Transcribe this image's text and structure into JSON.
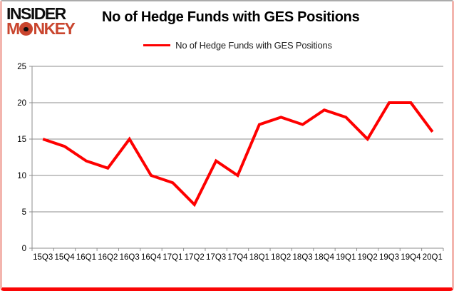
{
  "logo": {
    "line1": "INSIDER",
    "line2": "MONKEY",
    "accent_color": "#c9452e"
  },
  "header": {
    "title": "No of Hedge Funds with GES Positions"
  },
  "legend": {
    "label": "No of Hedge Funds with GES Positions",
    "swatch_color": "#fe0000"
  },
  "chart_data": {
    "type": "line",
    "title": "No of Hedge Funds with GES Positions",
    "categories": [
      "15Q3",
      "15Q4",
      "16Q1",
      "16Q2",
      "16Q3",
      "16Q4",
      "17Q1",
      "17Q2",
      "17Q3",
      "17Q4",
      "18Q1",
      "18Q2",
      "18Q3",
      "18Q4",
      "19Q1",
      "19Q2",
      "19Q3",
      "19Q4",
      "20Q1"
    ],
    "series": [
      {
        "name": "No of Hedge Funds with GES Positions",
        "color": "#fe0000",
        "values": [
          15,
          14,
          12,
          11,
          15,
          10,
          9,
          6,
          12,
          10,
          17,
          18,
          17,
          19,
          18,
          15,
          20,
          20,
          16
        ]
      }
    ],
    "xlabel": "",
    "ylabel": "",
    "ylim": [
      0,
      25
    ],
    "yticks": [
      0,
      5,
      10,
      15,
      20,
      25
    ],
    "grid": "horizontal",
    "gridline_color": "#8c8c8c",
    "axis_color": "#8c8c8c",
    "tick_label_color": "#000000",
    "legend_position": "top",
    "plot_background": "#ffffff"
  },
  "frame": {
    "top_color": "#ababab",
    "side_color": "#f3b5ae",
    "bottom_color": "#fa0606"
  }
}
